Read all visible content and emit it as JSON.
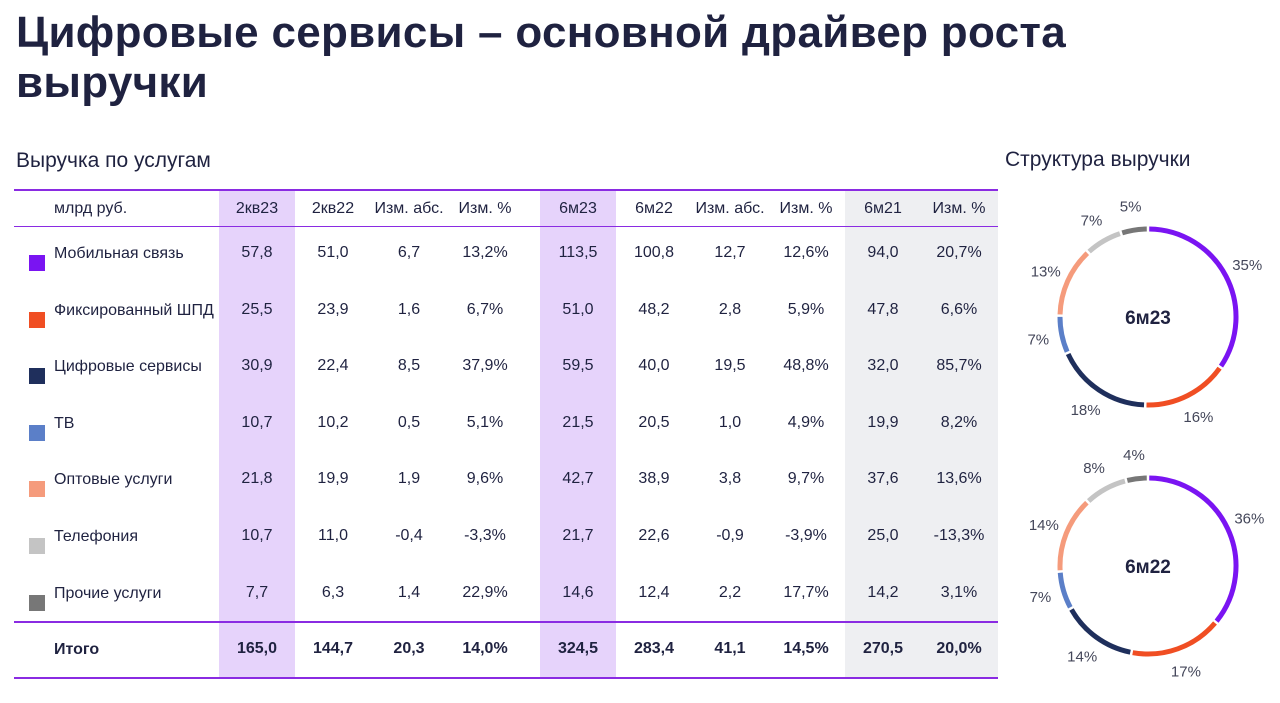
{
  "title": "Цифровые сервисы – основной драйвер роста выручки",
  "table_title": "Выручка по услугам",
  "structure_title": "Структура выручки",
  "colors": {
    "accent": "#8a2be2",
    "highlight_purple": "#e6d3fb",
    "highlight_grey": "#eeeff2",
    "text": "#1f2240"
  },
  "table": {
    "unit_label": "млрд руб.",
    "columns": [
      "2кв23",
      "2кв22",
      "Изм. абс.",
      "Изм. %",
      "6м23",
      "6м22",
      "Изм. абс.",
      "Изм. %",
      "6м21",
      "Изм. %"
    ],
    "rows": [
      {
        "label": "Мобильная связь",
        "color": "#7a14f2",
        "values": [
          "57,8",
          "51,0",
          "6,7",
          "13,2%",
          "113,5",
          "100,8",
          "12,7",
          "12,6%",
          "94,0",
          "20,7%"
        ]
      },
      {
        "label": "Фиксированный ШПД",
        "color": "#f04e23",
        "values": [
          "25,5",
          "23,9",
          "1,6",
          "6,7%",
          "51,0",
          "48,2",
          "2,8",
          "5,9%",
          "47,8",
          "6,6%"
        ]
      },
      {
        "label": "Цифровые сервисы",
        "color": "#1f2f5c",
        "values": [
          "30,9",
          "22,4",
          "8,5",
          "37,9%",
          "59,5",
          "40,0",
          "19,5",
          "48,8%",
          "32,0",
          "85,7%"
        ]
      },
      {
        "label": "ТВ",
        "color": "#5b7fc8",
        "values": [
          "10,7",
          "10,2",
          "0,5",
          "5,1%",
          "21,5",
          "20,5",
          "1,0",
          "4,9%",
          "19,9",
          "8,2%"
        ]
      },
      {
        "label": "Оптовые услуги",
        "color": "#f59b7c",
        "values": [
          "21,8",
          "19,9",
          "1,9",
          "9,6%",
          "42,7",
          "38,9",
          "3,8",
          "9,7%",
          "37,6",
          "13,6%"
        ]
      },
      {
        "label": "Телефония",
        "color": "#c4c4c4",
        "values": [
          "10,7",
          "11,0",
          "-0,4",
          "-3,3%",
          "21,7",
          "22,6",
          "-0,9",
          "-3,9%",
          "25,0",
          "-13,3%"
        ]
      },
      {
        "label": "Прочие услуги",
        "color": "#777777",
        "values": [
          "7,7",
          "6,3",
          "1,4",
          "22,9%",
          "14,6",
          "12,4",
          "2,2",
          "17,7%",
          "14,2",
          "3,1%"
        ]
      }
    ],
    "total": {
      "label": "Итого",
      "values": [
        "165,0",
        "144,7",
        "20,3",
        "14,0%",
        "324,5",
        "283,4",
        "41,1",
        "14,5%",
        "270,5",
        "20,0%"
      ]
    }
  },
  "chart_data": [
    {
      "type": "pie",
      "title": "6м23",
      "labels": [
        "Мобильная связь",
        "Фиксированный ШПД",
        "Цифровые сервисы",
        "ТВ",
        "Оптовые услуги",
        "Телефония",
        "Прочие услуги"
      ],
      "values": [
        35,
        16,
        18,
        7,
        13,
        7,
        5
      ],
      "value_labels": [
        "35%",
        "16%",
        "18%",
        "7%",
        "13%",
        "7%",
        "5%"
      ],
      "colors": [
        "#7a14f2",
        "#f04e23",
        "#1f2f5c",
        "#5b7fc8",
        "#f59b7c",
        "#c4c4c4",
        "#777777"
      ]
    },
    {
      "type": "pie",
      "title": "6м22",
      "labels": [
        "Мобильная связь",
        "Фиксированный ШПД",
        "Цифровые сервисы",
        "ТВ",
        "Оптовые услуги",
        "Телефония",
        "Прочие услуги"
      ],
      "values": [
        36,
        17,
        14,
        7,
        14,
        8,
        4
      ],
      "value_labels": [
        "36%",
        "17%",
        "14%",
        "7%",
        "14%",
        "8%",
        "4%"
      ],
      "colors": [
        "#7a14f2",
        "#f04e23",
        "#1f2f5c",
        "#5b7fc8",
        "#f59b7c",
        "#c4c4c4",
        "#777777"
      ]
    }
  ]
}
